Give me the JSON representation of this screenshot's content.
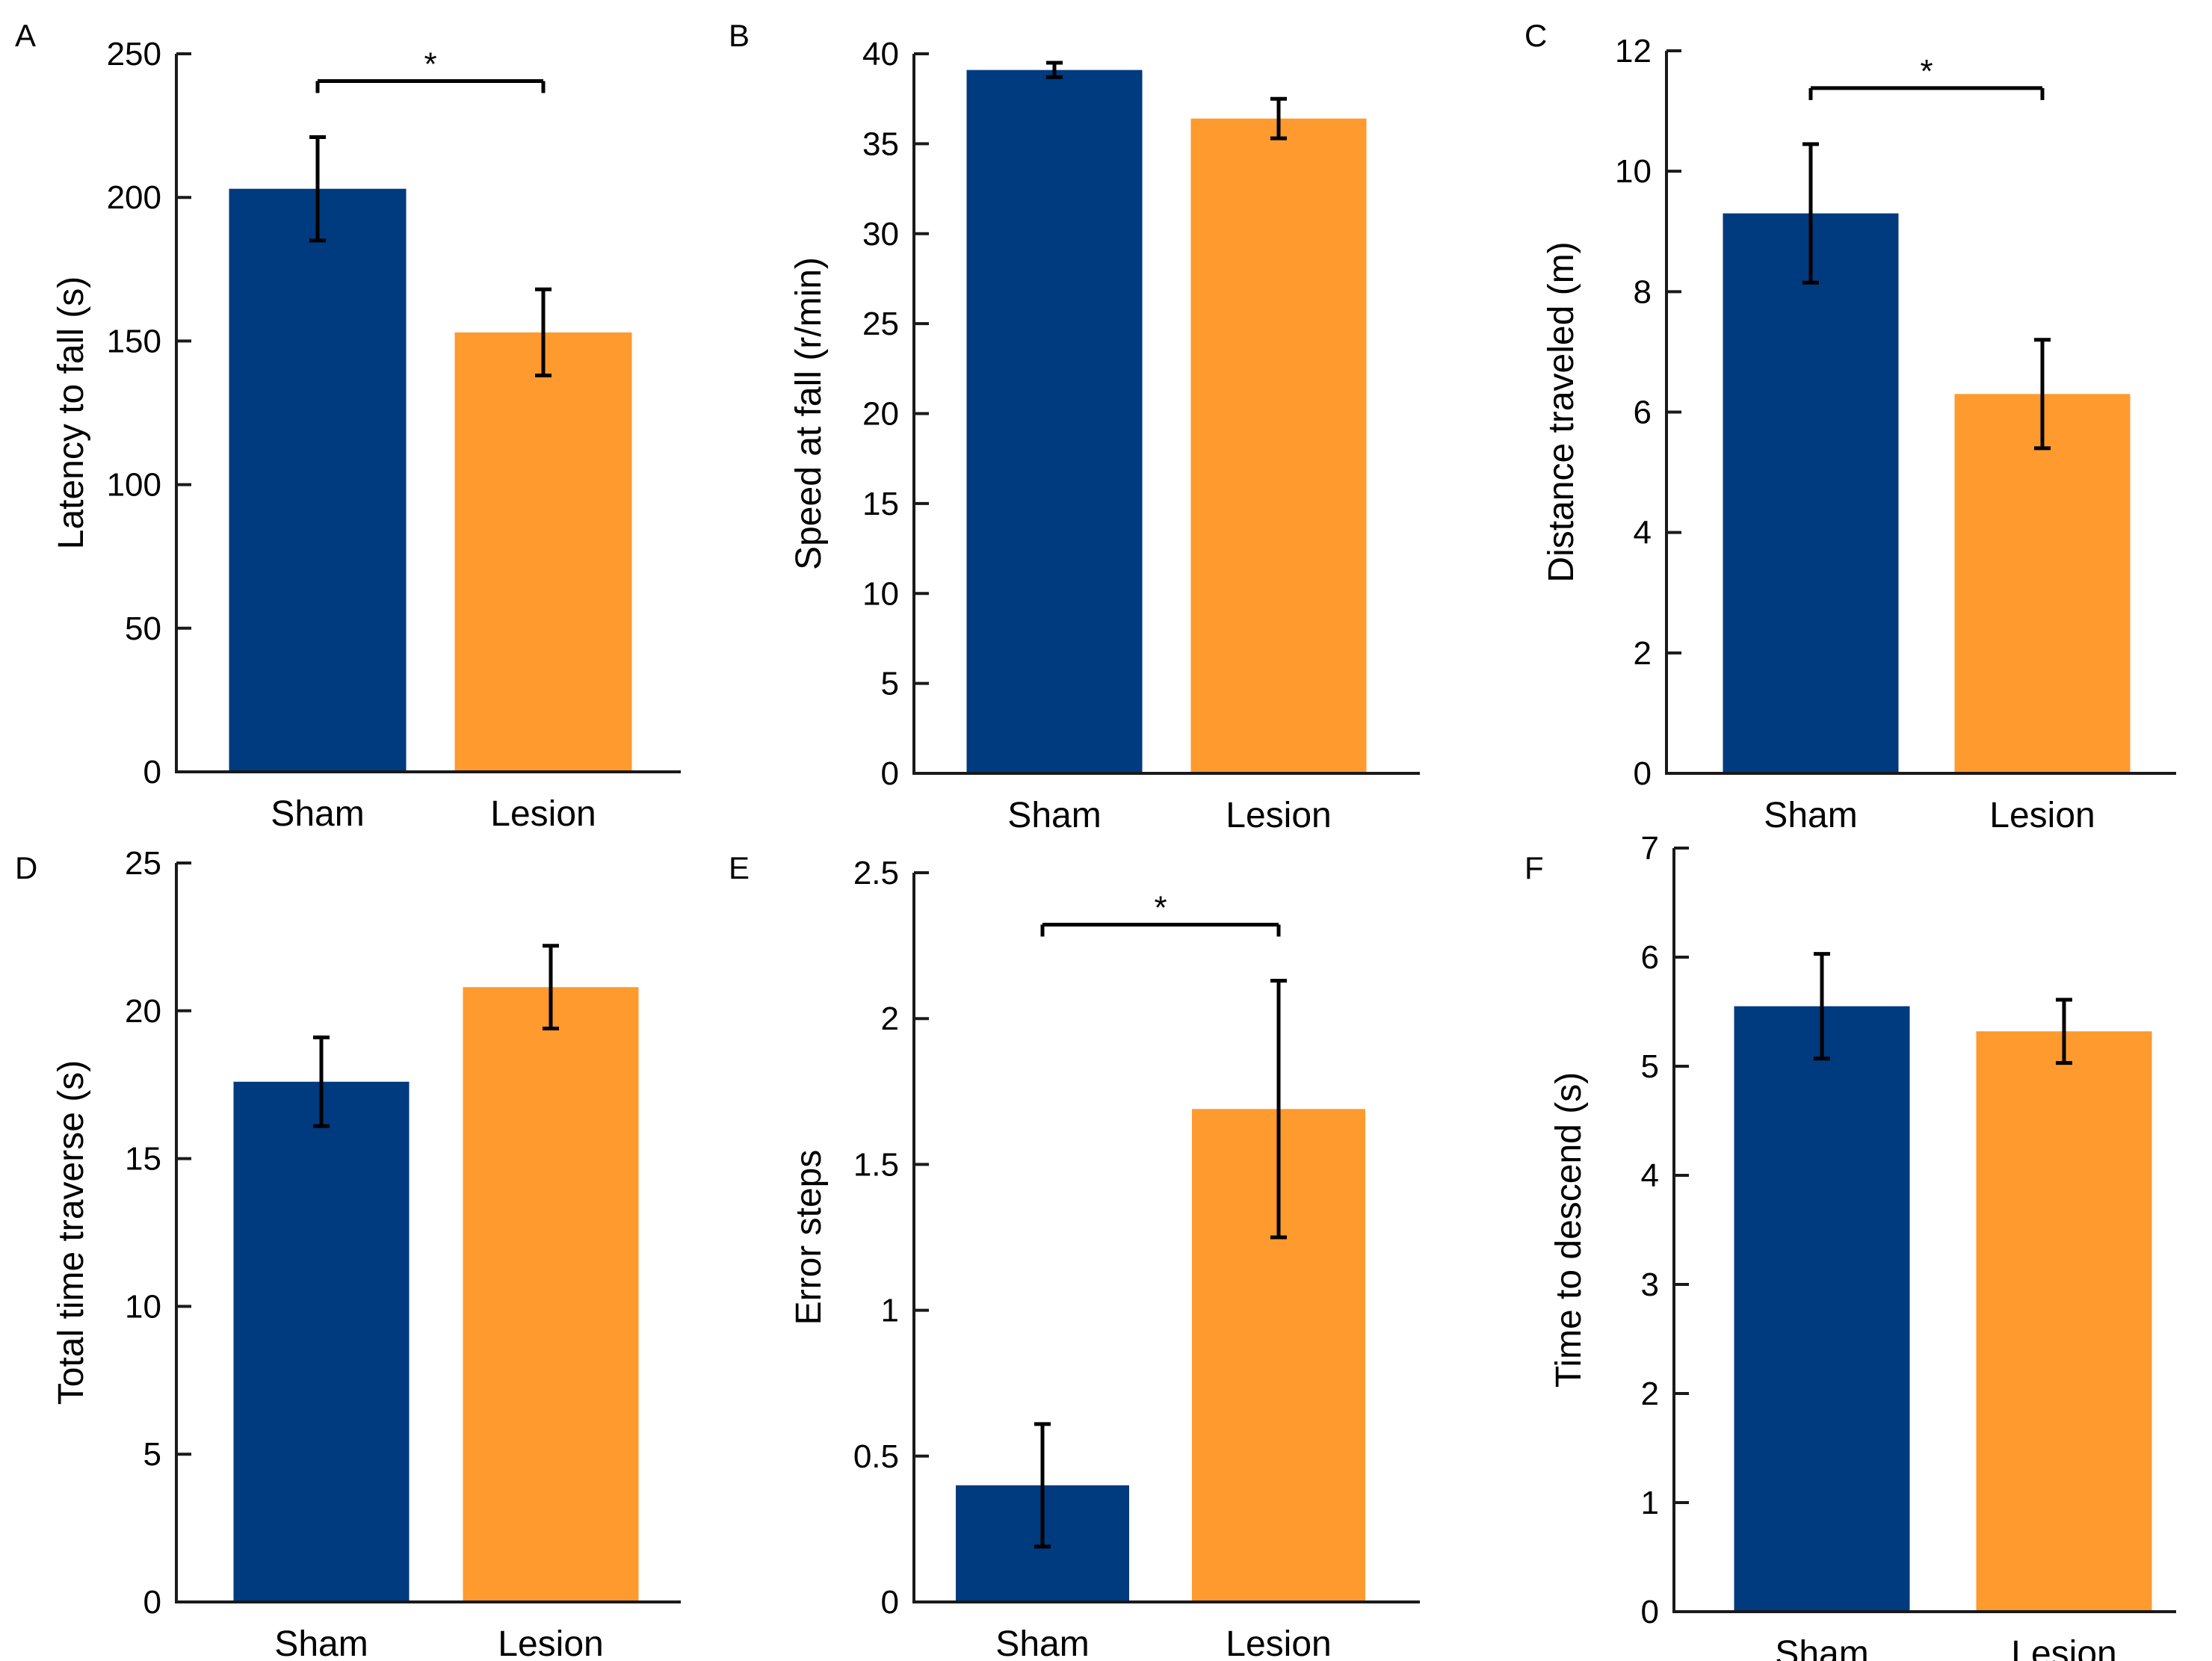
{
  "figure": {
    "colors": {
      "sham": "#003A7F",
      "lesion": "#FE9A2E",
      "axis": "#1A1A1A"
    }
  },
  "chart_data": [
    {
      "panel": "A",
      "type": "bar",
      "categories": [
        "Sham",
        "Lesion"
      ],
      "values": [
        203,
        153
      ],
      "errors": [
        18,
        15
      ],
      "title": "",
      "xlabel": "",
      "ylabel": "Latency to fall (s)",
      "ylim": [
        0,
        250
      ],
      "yticks": [
        0,
        50,
        100,
        150,
        200,
        250
      ],
      "significance": {
        "text": "*",
        "between": [
          0,
          1
        ]
      }
    },
    {
      "panel": "B",
      "type": "bar",
      "categories": [
        "Sham",
        "Lesion"
      ],
      "values": [
        39.1,
        36.4
      ],
      "errors": [
        0.4,
        1.1
      ],
      "title": "",
      "xlabel": "",
      "ylabel": "Speed at fall (r/min)",
      "ylim": [
        0,
        40
      ],
      "yticks": [
        0,
        5,
        10,
        15,
        20,
        25,
        30,
        35,
        40
      ],
      "significance": null
    },
    {
      "panel": "C",
      "type": "bar",
      "categories": [
        "Sham",
        "Lesion"
      ],
      "values": [
        9.3,
        6.3
      ],
      "errors": [
        1.15,
        0.9
      ],
      "title": "",
      "xlabel": "",
      "ylabel": "Distance traveled (m)",
      "ylim": [
        0,
        12
      ],
      "yticks": [
        0,
        2,
        4,
        6,
        8,
        10,
        12
      ],
      "significance": {
        "text": "*",
        "between": [
          0,
          1
        ]
      }
    },
    {
      "panel": "D",
      "type": "bar",
      "categories": [
        "Sham",
        "Lesion"
      ],
      "values": [
        17.6,
        20.8
      ],
      "errors": [
        1.5,
        1.4
      ],
      "title": "",
      "xlabel": "",
      "ylabel": "Total time traverse (s)",
      "ylim": [
        0,
        25
      ],
      "yticks": [
        0,
        5,
        10,
        15,
        20,
        25
      ],
      "significance": null
    },
    {
      "panel": "E",
      "type": "bar",
      "categories": [
        "Sham",
        "Lesion"
      ],
      "values": [
        0.4,
        1.69
      ],
      "errors": [
        0.21,
        0.44
      ],
      "title": "",
      "xlabel": "",
      "ylabel": "Error steps",
      "ylim": [
        0,
        2.5
      ],
      "yticks": [
        0,
        0.5,
        1,
        1.5,
        2,
        2.5
      ],
      "yticklabels": [
        "0",
        "0.5",
        "1",
        "1.5",
        "2",
        "2.5"
      ],
      "significance": {
        "text": "*",
        "between": [
          0,
          1
        ]
      }
    },
    {
      "panel": "F",
      "type": "bar",
      "categories": [
        "Sham",
        "Lesion"
      ],
      "values": [
        5.55,
        5.32
      ],
      "errors": [
        0.48,
        0.29
      ],
      "title": "",
      "xlabel": "",
      "ylabel": "Time to descend (s)",
      "ylim": [
        0,
        7
      ],
      "yticks": [
        0,
        1,
        2,
        3,
        4,
        5,
        6,
        7
      ],
      "significance": null
    }
  ]
}
